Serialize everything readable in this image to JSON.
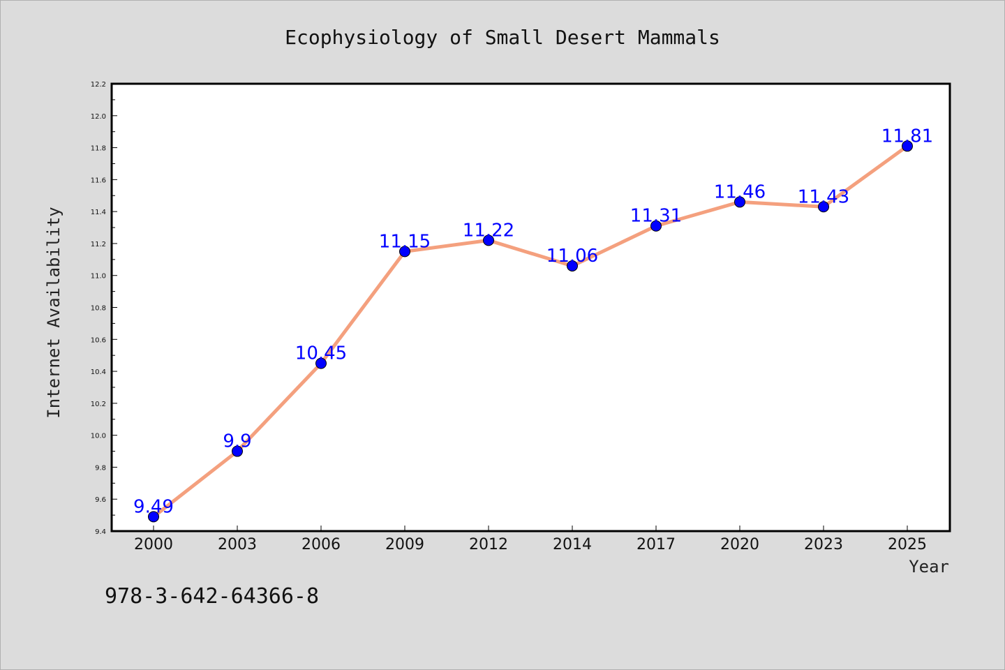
{
  "chart_data": {
    "type": "line",
    "title": "Ecophysiology of Small Desert Mammals",
    "xlabel": "Year",
    "ylabel": "Internet Availability",
    "categories": [
      "2000",
      "2003",
      "2006",
      "2009",
      "2012",
      "2014",
      "2017",
      "2020",
      "2023",
      "2025"
    ],
    "series": [
      {
        "values": [
          9.49,
          9.9,
          10.45,
          11.15,
          11.22,
          11.06,
          11.31,
          11.46,
          11.43,
          11.81
        ],
        "labels": [
          "9.49",
          "9.9",
          "10.45",
          "11.15",
          "11.22",
          "11.06",
          "11.31",
          "11.46",
          "11.43",
          "11.81"
        ],
        "line_color": "#f4a07e",
        "marker_color": "#0000ff"
      }
    ],
    "ylim": [
      9.4,
      12.2
    ],
    "yticks": [
      "9.4",
      "9.6",
      "9.8",
      "10.0",
      "10.2",
      "10.4",
      "10.6",
      "10.8",
      "11.0",
      "11.2",
      "11.4",
      "11.6",
      "11.8",
      "12.0",
      "12.2"
    ],
    "grid": false,
    "legend": "none",
    "data_label_color": "#0000ff"
  },
  "footnote": "978-3-642-64366-8"
}
